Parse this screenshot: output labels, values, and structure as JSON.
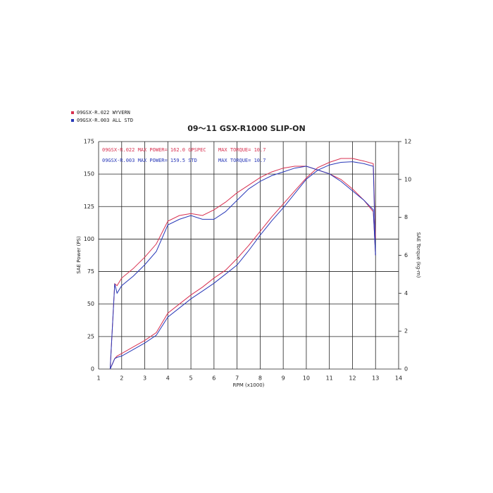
{
  "chart_data": {
    "type": "line",
    "title": "09～11 GSX-R1000 SLIP-ON",
    "x_label": "RPM (x1000)",
    "y_label": "SAE Power (PS)",
    "y2_label": "SAE Torque (kg-m)",
    "xlim": [
      1,
      14
    ],
    "xticks": [
      1,
      2,
      3,
      4,
      5,
      6,
      7,
      8,
      9,
      10,
      11,
      12,
      13,
      14
    ],
    "ylim": [
      0,
      175
    ],
    "yticks": [
      0,
      25,
      50,
      75,
      100,
      125,
      150,
      175
    ],
    "y2lim": [
      0,
      12
    ],
    "y2ticks": [
      0,
      2,
      4,
      6,
      8,
      10,
      12
    ],
    "grid": true,
    "legend": "top-left",
    "x": [
      1.5,
      1.7,
      1.8,
      2,
      2.5,
      3,
      3.5,
      4,
      4.5,
      5,
      5.5,
      6,
      6.5,
      7,
      7.5,
      8,
      8.5,
      9,
      9.5,
      10,
      10.5,
      11,
      11.5,
      12,
      12.5,
      12.9,
      13
    ],
    "series": [
      {
        "name": "09GSX-R.022  WYVERN",
        "color": "#d83050",
        "power": [
          0,
          8,
          10,
          12,
          17,
          22,
          28,
          43,
          50,
          57,
          63,
          70,
          76,
          85,
          95,
          106,
          117,
          127,
          137,
          147,
          155,
          159,
          162,
          162,
          160,
          158,
          100
        ],
        "torque": [
          0,
          4.5,
          4.4,
          4.8,
          5.3,
          5.9,
          6.6,
          7.8,
          8.1,
          8.2,
          8.1,
          8.4,
          8.8,
          9.3,
          9.7,
          10.1,
          10.4,
          10.6,
          10.7,
          10.7,
          10.5,
          10.3,
          10,
          9.5,
          8.9,
          8.3,
          6
        ]
      },
      {
        "name": "09GSX-R.003  ALL STD",
        "color": "#2838b8",
        "power": [
          0,
          8,
          9,
          10,
          15,
          20,
          26,
          40,
          47,
          54,
          60,
          66,
          73,
          80,
          91,
          103,
          114,
          124,
          135,
          146,
          153,
          157,
          159,
          159.5,
          158,
          156,
          88
        ],
        "torque": [
          0,
          4.5,
          4,
          4.4,
          4.9,
          5.5,
          6.2,
          7.6,
          7.9,
          8.1,
          7.9,
          7.9,
          8.3,
          8.9,
          9.5,
          9.9,
          10.2,
          10.4,
          10.6,
          10.7,
          10.5,
          10.3,
          9.9,
          9.4,
          8.9,
          8.4,
          6
        ]
      }
    ],
    "annotations": [
      {
        "text": "09GSX-R.022  MAX POWER= 162.0  GPSPEC",
        "color": "#d83050"
      },
      {
        "text": "MAX TORQUE= 10.7",
        "color": "#d83050"
      },
      {
        "text": "09GSX-R.003  MAX POWER= 159.5  STD",
        "color": "#2838b8"
      },
      {
        "text": "MAX TORQUE= 10.7",
        "color": "#2838b8"
      }
    ]
  }
}
